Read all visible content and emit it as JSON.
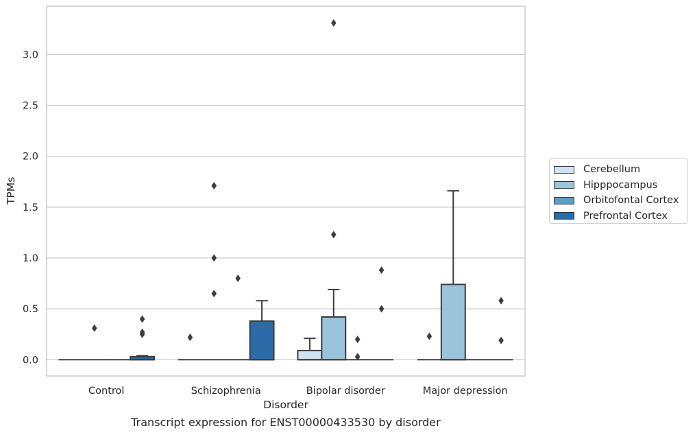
{
  "chart_data": {
    "type": "box",
    "title": "",
    "caption": "Transcript expression for ENST00000433530 by disorder",
    "xlabel": "Disorder",
    "ylabel": "TPMs",
    "ylim": [
      -0.16,
      3.475
    ],
    "yticks": [
      0.0,
      0.5,
      1.0,
      1.5,
      2.0,
      2.5,
      3.0
    ],
    "ytick_labels": [
      "0.0",
      "0.5",
      "1.0",
      "1.5",
      "2.0",
      "2.5",
      "3.0"
    ],
    "grid": true,
    "legend_position": "right",
    "categories": [
      "Control",
      "Schizophrenia",
      "Bipolar disorder",
      "Major depression"
    ],
    "series": [
      {
        "name": "Cerebellum",
        "color": "#d1e2f2",
        "boxes": [
          {
            "q1": 0,
            "median": 0,
            "q3": 0,
            "whislo": 0,
            "whishi": 0,
            "fliers": []
          },
          {
            "q1": 0,
            "median": 0,
            "q3": 0,
            "whislo": 0,
            "whishi": 0,
            "fliers": [
              0.22
            ]
          },
          {
            "q1": 0,
            "median": 0,
            "q3": 0.09,
            "whislo": 0,
            "whishi": 0.21,
            "fliers": []
          },
          {
            "q1": 0,
            "median": 0,
            "q3": 0,
            "whislo": 0,
            "whishi": 0,
            "fliers": [
              0.23
            ]
          }
        ]
      },
      {
        "name": "Hipppocampus",
        "color": "#9ac3dc",
        "boxes": [
          {
            "q1": 0,
            "median": 0,
            "q3": 0,
            "whislo": 0,
            "whishi": 0,
            "fliers": [
              0.31
            ]
          },
          {
            "q1": 0,
            "median": 0,
            "q3": 0,
            "whislo": 0,
            "whishi": 0,
            "fliers": [
              0.65,
              1.0,
              1.71
            ]
          },
          {
            "q1": 0,
            "median": 0,
            "q3": 0.42,
            "whislo": 0,
            "whishi": 0.69,
            "fliers": [
              1.23,
              3.31
            ]
          },
          {
            "q1": 0,
            "median": 0,
            "q3": 0.74,
            "whislo": 0,
            "whishi": 1.66,
            "fliers": []
          }
        ]
      },
      {
        "name": "Orbitofontal Cortex",
        "color": "#5a9ec9",
        "boxes": [
          {
            "q1": 0,
            "median": 0,
            "q3": 0,
            "whislo": 0,
            "whishi": 0,
            "fliers": []
          },
          {
            "q1": 0,
            "median": 0,
            "q3": 0,
            "whislo": 0,
            "whishi": 0,
            "fliers": [
              0.8
            ]
          },
          {
            "q1": 0,
            "median": 0,
            "q3": 0,
            "whislo": 0,
            "whishi": 0,
            "fliers": [
              0.03,
              0.2
            ]
          },
          {
            "q1": 0,
            "median": 0,
            "q3": 0,
            "whislo": 0,
            "whishi": 0,
            "fliers": []
          }
        ]
      },
      {
        "name": "Prefrontal Cortex",
        "color": "#2b6ba8",
        "boxes": [
          {
            "q1": 0,
            "median": 0,
            "q3": 0.03,
            "whislo": 0,
            "whishi": 0.04,
            "fliers": [
              0.25,
              0.27,
              0.4
            ]
          },
          {
            "q1": 0,
            "median": 0,
            "q3": 0.38,
            "whislo": 0,
            "whishi": 0.58,
            "fliers": []
          },
          {
            "q1": 0,
            "median": 0,
            "q3": 0,
            "whislo": 0,
            "whishi": 0,
            "fliers": [
              0.5,
              0.88
            ]
          },
          {
            "q1": 0,
            "median": 0,
            "q3": 0,
            "whislo": 0,
            "whishi": 0,
            "fliers": [
              0.19,
              0.58
            ]
          }
        ]
      }
    ]
  }
}
